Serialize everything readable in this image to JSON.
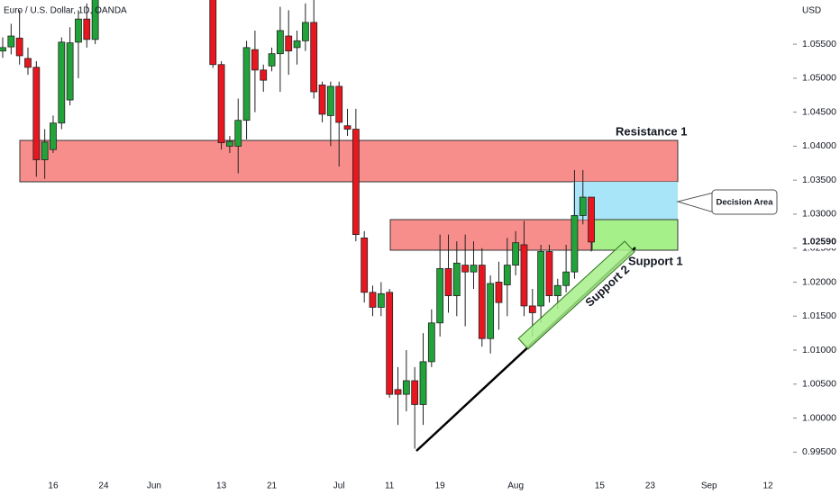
{
  "chart_data": {
    "type": "candlestick",
    "title": "Euro / U.S. Dollar, 1D, OANDA",
    "y_axis_label": "USD",
    "categories": [
      null,
      null,
      null,
      null,
      null,
      null,
      "16",
      null,
      null,
      null,
      null,
      null,
      "24",
      null,
      null,
      null,
      null,
      null,
      "Jun",
      null,
      null,
      null,
      null,
      null,
      null,
      null,
      "13",
      null,
      null,
      null,
      null,
      null,
      "21",
      null,
      null,
      null,
      null,
      null,
      null,
      null,
      "Jul",
      null,
      null,
      null,
      null,
      null,
      "11",
      null,
      null,
      null,
      null,
      null,
      "19",
      null,
      null,
      null,
      null,
      null,
      null,
      null,
      null,
      "Aug",
      null,
      null,
      null,
      null,
      null,
      null,
      null,
      null,
      null,
      "15",
      null,
      null,
      null,
      null,
      null,
      "23",
      null,
      null,
      null,
      null,
      null,
      null,
      "Sep",
      null,
      null,
      null,
      null,
      null,
      null,
      "12",
      null,
      null
    ],
    "open": [
      1.054,
      1.0546,
      1.0559,
      1.0529,
      1.0516,
      1.038,
      1.0395,
      1.0434,
      1.0468,
      1.0553,
      1.0587,
      1.0557,
      null,
      null,
      null,
      null,
      null,
      null,
      null,
      null,
      null,
      null,
      null,
      null,
      null,
      1.063,
      1.052,
      1.04,
      1.04,
      1.0438,
      1.0542,
      1.0512,
      1.0518,
      1.0536,
      1.0562,
      1.0545,
      1.0555,
      1.0582,
      1.049,
      1.0445,
      1.0488,
      1.043,
      1.0425,
      1.0265,
      1.0185,
      1.0163,
      1.0185,
      1.0042,
      1.0035,
      1.0055,
      1.002,
      1.0083,
      1.014,
      1.022,
      1.018,
      1.0225,
      1.0215,
      1.0225,
      1.0117,
      1.02,
      1.0196,
      1.0225,
      1.0255,
      1.0165,
      1.0165,
      1.0245,
      1.018,
      1.0195,
      1.0215,
      1.0298,
      1.0325,
      null,
      null,
      null,
      null,
      null,
      null,
      null,
      null,
      null,
      null,
      null,
      null,
      null,
      null,
      null,
      null,
      null,
      null,
      null,
      null,
      null,
      null,
      null
    ],
    "high": [
      1.056,
      1.058,
      1.06,
      1.0545,
      1.0525,
      1.0425,
      1.0445,
      1.056,
      1.0575,
      1.06,
      1.061,
      1.064,
      null,
      null,
      null,
      null,
      null,
      null,
      null,
      null,
      null,
      null,
      null,
      null,
      null,
      1.064,
      1.0525,
      1.0415,
      1.047,
      1.0555,
      1.057,
      1.052,
      1.0545,
      1.0605,
      1.06,
      1.057,
      1.061,
      1.0615,
      1.0495,
      1.0495,
      1.0495,
      1.0455,
      1.0455,
      1.0275,
      1.0195,
      1.02,
      1.019,
      1.0075,
      1.01,
      1.0075,
      1.0125,
      1.016,
      1.027,
      1.027,
      1.026,
      1.027,
      1.026,
      1.025,
      1.021,
      1.023,
      1.0265,
      1.0275,
      1.029,
      1.019,
      1.0255,
      1.0255,
      1.0205,
      1.0255,
      1.0365,
      1.0365,
      1.0325,
      null,
      null,
      null,
      null,
      null,
      null,
      null,
      null,
      null,
      null,
      null,
      null,
      null,
      null,
      null,
      null,
      null,
      null,
      null,
      null,
      null,
      null,
      null
    ],
    "low": [
      1.053,
      1.0535,
      1.052,
      1.0505,
      1.0355,
      1.0352,
      1.039,
      1.0425,
      1.046,
      1.05,
      1.0545,
      1.055,
      null,
      null,
      null,
      null,
      null,
      null,
      null,
      null,
      null,
      null,
      null,
      null,
      null,
      1.0515,
      1.0395,
      1.039,
      1.036,
      1.041,
      1.045,
      1.048,
      1.051,
      1.048,
      1.0505,
      1.052,
      1.054,
      1.047,
      1.0435,
      1.04,
      1.037,
      1.0415,
      1.026,
      1.017,
      1.015,
      1.015,
      1.003,
      0.999,
      1.001,
      0.9955,
      0.999,
      1.0075,
      1.012,
      1.0155,
      1.015,
      1.0135,
      1.019,
      1.0105,
      1.0095,
      1.013,
      1.015,
      1.021,
      1.015,
      1.012,
      1.014,
      1.017,
      1.016,
      1.0185,
      1.0205,
      1.0285,
      1.0245,
      null,
      null,
      null,
      null,
      null,
      null,
      null,
      null,
      null,
      null,
      null,
      null,
      null,
      null,
      null,
      null,
      null,
      null,
      null,
      null,
      null,
      null,
      null
    ],
    "close": [
      1.0545,
      1.0562,
      1.0533,
      1.0516,
      1.038,
      1.0406,
      1.0434,
      1.0553,
      1.0552,
      1.0587,
      1.0557,
      1.0625,
      null,
      null,
      null,
      null,
      null,
      null,
      null,
      null,
      null,
      null,
      null,
      null,
      null,
      1.052,
      1.0405,
      1.0407,
      1.0438,
      1.0545,
      1.0512,
      1.0497,
      1.0536,
      1.057,
      1.054,
      1.0555,
      1.0582,
      1.048,
      1.0447,
      1.0488,
      1.0435,
      1.0425,
      1.027,
      1.0185,
      1.0163,
      1.0183,
      1.0035,
      1.0035,
      1.0055,
      1.002,
      1.0083,
      1.014,
      1.022,
      1.018,
      1.0228,
      1.0215,
      1.0225,
      1.0117,
      1.0198,
      1.017,
      1.0225,
      1.0258,
      1.0165,
      1.0155,
      1.0245,
      1.018,
      1.0195,
      1.0215,
      1.0298,
      1.0325,
      1.0259,
      null,
      null,
      null,
      null,
      null,
      null,
      null,
      null,
      null,
      null,
      null,
      null,
      null,
      null,
      null,
      null,
      null,
      null,
      null,
      null,
      null,
      null,
      null
    ],
    "up_color": "#22a33a",
    "down_color": "#e8171f",
    "ylim": [
      0.992,
      1.0615
    ],
    "yticks": [
      {
        "value": 0.995,
        "label": "0.99500"
      },
      {
        "value": 1.0,
        "label": "1.00000"
      },
      {
        "value": 1.005,
        "label": "1.00500"
      },
      {
        "value": 1.01,
        "label": "1.01000"
      },
      {
        "value": 1.015,
        "label": "1.01500"
      },
      {
        "value": 1.02,
        "label": "1.02000"
      },
      {
        "value": 1.025,
        "label": "1.02500"
      },
      {
        "value": 1.03,
        "label": "1.03000"
      },
      {
        "value": 1.035,
        "label": "1.03500"
      },
      {
        "value": 1.04,
        "label": "1.04000"
      },
      {
        "value": 1.045,
        "label": "1.04500"
      },
      {
        "value": 1.05,
        "label": "1.05000"
      },
      {
        "value": 1.055,
        "label": "1.05500"
      }
    ],
    "last_price_label": "1.02590",
    "annotations": {
      "resistance_1": "Resistance 1",
      "support_1": "Support 1",
      "support_2": "Support 2",
      "decision_area": "Decision Area"
    }
  }
}
